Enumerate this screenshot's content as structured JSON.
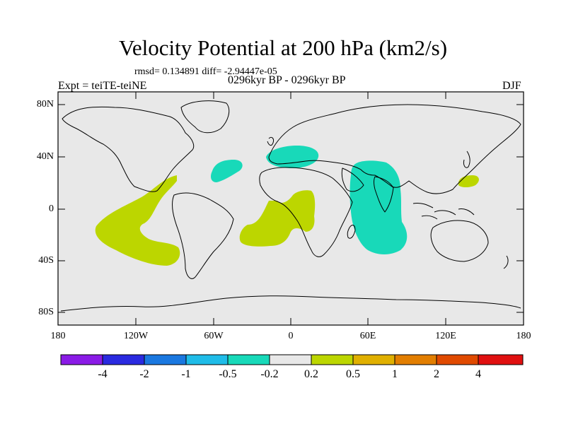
{
  "title": "Velocity Potential at 200 hPa (km2/s)",
  "stats": "rmsd= 0.134891 diff= -2.94447e-05",
  "expt": "Expt = teiTE-teiNE",
  "period": "0296kyr BP - 0296kyr BP",
  "season": "DJF",
  "lat_labels": [
    "80N",
    "40N",
    "0",
    "40S",
    "80S"
  ],
  "lon_labels": [
    "180",
    "120W",
    "60W",
    "0",
    "60E",
    "120E",
    "180"
  ],
  "colorbar": {
    "colors": [
      "#8a1be6",
      "#2a2ae0",
      "#1a78e0",
      "#1fbce8",
      "#18d9b9",
      "#e8e8e8",
      "#bcd600",
      "#e0b000",
      "#e27e00",
      "#e04a00",
      "#e01010"
    ],
    "labels": [
      "-4",
      "-2",
      "-1",
      "-0.5",
      "-0.2",
      "0.2",
      "0.5",
      "1",
      "2",
      "4"
    ]
  },
  "colors": {
    "positive": "#bcd600",
    "negative": "#18d9b9",
    "background": "#e8e8e8"
  }
}
